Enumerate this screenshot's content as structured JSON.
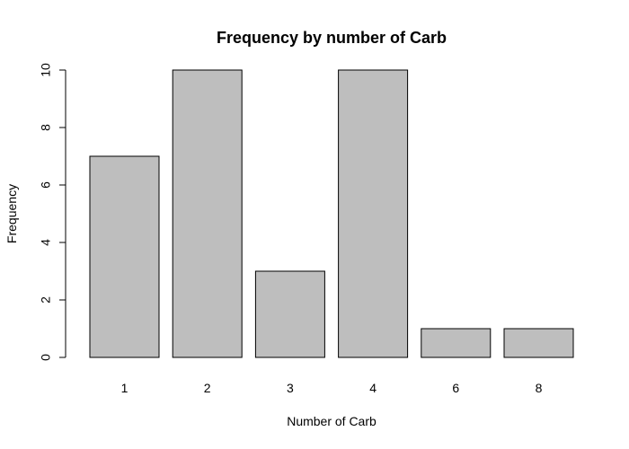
{
  "chart_data": {
    "type": "bar",
    "title": "Frequency by number of Carb",
    "xlabel": "Number of Carb",
    "ylabel": "Frequency",
    "categories": [
      "1",
      "2",
      "3",
      "4",
      "6",
      "8"
    ],
    "values": [
      7,
      10,
      3,
      10,
      1,
      1
    ],
    "ylim": [
      0,
      10
    ],
    "yticks": [
      0,
      2,
      4,
      6,
      8,
      10
    ],
    "bar_color": "#bebebe",
    "border_color": "#000000",
    "grid": false,
    "legend": "none"
  }
}
